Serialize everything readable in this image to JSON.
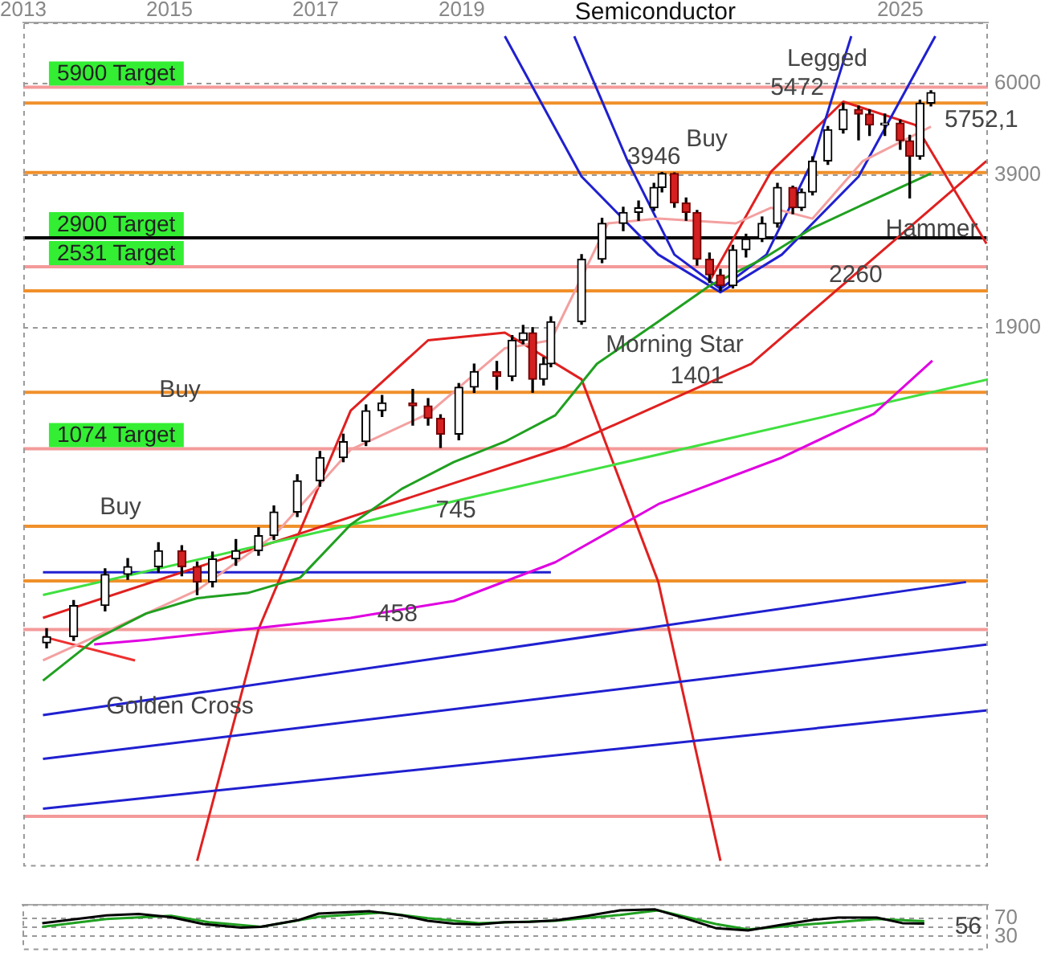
{
  "chart_data": [
    {
      "type": "candlestick",
      "title": "Semiconductor",
      "x": [
        2013.32,
        2013.69,
        2014.12,
        2014.43,
        2014.85,
        2015.17,
        2015.38,
        2015.59,
        2015.91,
        2016.22,
        2016.43,
        2016.75,
        2017.06,
        2017.38,
        2017.69,
        2017.91,
        2018.33,
        2018.54,
        2018.71,
        2018.96,
        2019.17,
        2019.48,
        2019.69,
        2019.84,
        2019.97,
        2020.12,
        2020.22,
        2020.64,
        2020.92,
        2021.21,
        2021.42,
        2021.63,
        2021.74,
        2021.91,
        2022.07,
        2022.22,
        2022.39,
        2022.54,
        2022.71,
        2022.89,
        2023.11,
        2023.32,
        2023.53,
        2023.65,
        2023.8,
        2024.01,
        2024.22,
        2024.43,
        2024.58,
        2024.79,
        2025.0,
        2025.13,
        2025.27,
        2025.42
      ],
      "ohlc": [
        [
          430,
          460,
          420,
          443
        ],
        [
          443,
          525,
          435,
          513
        ],
        [
          513,
          610,
          500,
          594
        ],
        [
          594,
          640,
          580,
          616
        ],
        [
          616,
          690,
          600,
          664
        ],
        [
          664,
          680,
          590,
          616
        ],
        [
          616,
          630,
          540,
          573
        ],
        [
          573,
          660,
          560,
          639
        ],
        [
          639,
          700,
          620,
          664
        ],
        [
          664,
          740,
          650,
          713
        ],
        [
          713,
          820,
          700,
          797
        ],
        [
          797,
          950,
          780,
          923
        ],
        [
          923,
          1060,
          900,
          1030
        ],
        [
          1030,
          1150,
          1010,
          1110
        ],
        [
          1110,
          1320,
          1090,
          1285
        ],
        [
          1285,
          1380,
          1250,
          1333
        ],
        [
          1333,
          1420,
          1200,
          1314
        ],
        [
          1314,
          1360,
          1200,
          1239
        ],
        [
          1239,
          1260,
          1080,
          1150
        ],
        [
          1150,
          1460,
          1120,
          1435
        ],
        [
          1435,
          1600,
          1400,
          1545
        ],
        [
          1545,
          1620,
          1420,
          1509
        ],
        [
          1509,
          1830,
          1480,
          1790
        ],
        [
          1790,
          1920,
          1760,
          1855
        ],
        [
          1855,
          1900,
          1401,
          1489
        ],
        [
          1489,
          1650,
          1450,
          1602
        ],
        [
          1602,
          2000,
          1580,
          1954
        ],
        [
          1954,
          2680,
          1930,
          2622
        ],
        [
          2622,
          3180,
          2580,
          3105
        ],
        [
          3105,
          3350,
          3000,
          3270
        ],
        [
          3270,
          3450,
          3150,
          3342
        ],
        [
          3342,
          3750,
          3300,
          3678
        ],
        [
          3678,
          3946,
          3600,
          3929
        ],
        [
          3929,
          3940,
          3350,
          3418
        ],
        [
          3418,
          3500,
          3150,
          3270
        ],
        [
          3270,
          3300,
          2550,
          2622
        ],
        [
          2622,
          2700,
          2350,
          2436
        ],
        [
          2436,
          2500,
          2260,
          2314
        ],
        [
          2314,
          2800,
          2290,
          2741
        ],
        [
          2741,
          2950,
          2650,
          2886
        ],
        [
          2886,
          3200,
          2850,
          3105
        ],
        [
          3105,
          3750,
          3050,
          3678
        ],
        [
          3678,
          3700,
          3250,
          3342
        ],
        [
          3342,
          3650,
          3300,
          3597
        ],
        [
          3597,
          4250,
          3550,
          4166
        ],
        [
          4166,
          4900,
          4100,
          4828
        ],
        [
          4828,
          5472,
          4750,
          5312
        ],
        [
          5312,
          5400,
          4600,
          5196
        ],
        [
          5196,
          5300,
          4700,
          4934
        ],
        [
          4934,
          5200,
          4700,
          4980
        ],
        [
          4980,
          5050,
          4400,
          4585
        ],
        [
          4585,
          4700,
          3500,
          4259
        ],
        [
          4259,
          5550,
          4200,
          5470
        ],
        [
          5470,
          5800,
          5400,
          5752.1
        ]
      ],
      "series": [
        {
          "type": "line",
          "color": "#20a020",
          "x": [
            2013.27,
            2013.97,
            2014.68,
            2015.38,
            2016.07,
            2016.79,
            2017.48,
            2018.18,
            2018.89,
            2019.59,
            2020.28,
            2020.85,
            2021.69,
            2022.39,
            2023.11,
            2023.8,
            2024.49,
            2025.42
          ],
          "values": [
            360,
            436,
            494,
            531,
            544,
            585,
            751,
            889,
            1008,
            1110,
            1257,
            1602,
            1954,
            2314,
            2622,
            3037,
            3391,
            3929
          ]
        },
        {
          "type": "line",
          "color": "#e000e0",
          "x": [
            2013.97,
            2014.68,
            2016.07,
            2017.48,
            2018.89,
            2020.28,
            2021.69,
            2023.38,
            2024.64,
            2025.44
          ],
          "values": [
            427,
            436,
            459,
            484,
            524,
            629,
            827,
            1030,
            1266,
            1626
          ]
        },
        {
          "type": "line",
          "color": "#f4a0a0",
          "x": [
            2013.27,
            2015.38,
            2016.43,
            2017.48,
            2018.54,
            2019.59,
            2020.22,
            2021,
            2021.69,
            2022.75,
            2023.23,
            2023.8,
            2024.49,
            2025.42
          ],
          "values": [
            396,
            551,
            713,
            1069,
            1266,
            1724,
            1790,
            3105,
            3175,
            3105,
            3342,
            3175,
            4166,
            4898
          ]
        },
        {
          "type": "line",
          "color": "#40e040",
          "x": [
            2013.27,
            2026.2
          ],
          "values": [
            539,
            1489
          ]
        },
        {
          "type": "line",
          "color": "#e02020",
          "x": [
            2013.27,
            2020.43,
            2022.96,
            2026.18
          ],
          "values": [
            484,
            1086,
            1602,
            4166
          ]
        },
        {
          "type": "line",
          "color": "#2020d0",
          "x": [
            2013.27,
            2025.9
          ],
          "values": [
            306,
            573
          ]
        },
        {
          "type": "line",
          "color": "#2020d0",
          "x": [
            2013.27,
            2026.2
          ],
          "values": [
            249,
            427
          ]
        },
        {
          "type": "line",
          "color": "#2020d0",
          "x": [
            2013.27,
            2026.2
          ],
          "values": [
            197,
            313
          ]
        },
        {
          "type": "line",
          "color": "#ee3030",
          "x": [
            2013.27,
            2014.53
          ],
          "values": [
            443,
            396
          ]
        },
        {
          "type": "line",
          "color": "#2020d0",
          "x": [
            2013.27,
            2020.22
          ],
          "values": [
            600,
            600
          ]
        },
        {
          "type": "line",
          "color": "#2020d0",
          "x": [
            2020.54,
            2021.27,
            2021.91,
            2022.54,
            2023.17,
            2023.8,
            2024.33
          ],
          "values": [
            7500,
            4166,
            2680,
            2280,
            2680,
            4166,
            7500
          ]
        },
        {
          "type": "line",
          "color": "#2020d0",
          "x": [
            2019.59,
            2020.64,
            2021.69,
            2022.54,
            2023.38,
            2024.43,
            2025.48
          ],
          "values": [
            7500,
            3871,
            2680,
            2245,
            2680,
            3871,
            7500
          ]
        },
        {
          "type": "line",
          "color": "#e02020",
          "x": [
            2015.38,
            2016.22,
            2017.48,
            2018.54,
            2019.59,
            2020.64,
            2021.69,
            2022.54
          ],
          "values": [
            154,
            459,
            1285,
            1790,
            1855,
            1489,
            573,
            154
          ]
        },
        {
          "type": "line",
          "color": "#e02020",
          "x": [
            2022.39,
            2023.23,
            2024.22,
            2025.21,
            2026.18
          ],
          "values": [
            2365,
            3957,
            5510,
            4934,
            2821
          ]
        }
      ],
      "xlim": [
        2013,
        2026.2
      ],
      "xticks": [
        2013,
        2015,
        2017,
        2019,
        2025
      ],
      "ylim": [
        150,
        8000
      ],
      "yticks": [
        1900,
        3900,
        6000
      ],
      "log": true,
      "grid": "y",
      "marker": "none",
      "ref_lines": [
        {
          "axis": "y",
          "value": 5900,
          "label": "5900 Target",
          "color": "#f49a9a"
        },
        {
          "axis": "y",
          "value": 2900,
          "label": "2900 Target",
          "color": "#000000"
        },
        {
          "axis": "y",
          "value": 2531,
          "label": "2531 Target",
          "color": "#f49a9a"
        },
        {
          "axis": "y",
          "value": 1074,
          "label": "1074 Target",
          "color": "#f49a9a"
        },
        {
          "axis": "y",
          "value": 458,
          "color": "#f49a9a"
        },
        {
          "axis": "y",
          "value": 190,
          "color": "#f49a9a"
        },
        {
          "axis": "y",
          "value": 5472,
          "color": "#f0902a"
        },
        {
          "axis": "y",
          "value": 3946,
          "color": "#f0902a"
        },
        {
          "axis": "y",
          "value": 2260,
          "color": "#f0902a"
        },
        {
          "axis": "y",
          "value": 1401,
          "color": "#f0902a"
        },
        {
          "axis": "y",
          "value": 745,
          "color": "#f0902a"
        },
        {
          "axis": "y",
          "value": 576,
          "color": "#f0902a"
        }
      ],
      "annotations": [
        {
          "text": "5472",
          "x": 2023.59,
          "y": 5472
        },
        {
          "text": "3946",
          "x": 2021.63,
          "y": 3946
        },
        {
          "text": "2260",
          "x": 2024.39,
          "y": 2260
        },
        {
          "text": "1401",
          "x": 2022.22,
          "y": 1401
        },
        {
          "text": "745",
          "x": 2018.92,
          "y": 745
        },
        {
          "text": "458",
          "x": 2018.12,
          "y": 458
        },
        "Buy",
        "Buy",
        "Buy",
        "Golden Cross",
        "Morning Star",
        "Hammer",
        "Legged",
        "5752,1"
      ]
    },
    {
      "type": "line",
      "xlim": [
        2013,
        2026.2
      ],
      "ylim": [
        0,
        100
      ],
      "yticks": [
        30,
        {
          "value": 50,
          "label": null
        },
        70
      ],
      "grid": "y",
      "tick_labels": "y",
      "marker": "none",
      "series": [
        {
          "color": "#000000",
          "x": [
            2013.27,
            2014.15,
            2014.59,
            2015.03,
            2015.47,
            2015.99,
            2016.26,
            2016.78,
            2017.05,
            2017.75,
            2018.19,
            2018.54,
            2018.89,
            2019.24,
            2019.59,
            2019.94,
            2020.29,
            2020.73,
            2021.17,
            2021.65,
            2022.05,
            2022.48,
            2022.92,
            2023.36,
            2023.8,
            2024.15,
            2024.68,
            2025.03,
            2025.33
          ],
          "values": [
            59,
            76,
            79,
            72,
            57,
            49,
            51,
            66,
            80,
            85,
            76,
            64,
            58,
            56,
            61,
            62,
            65,
            75,
            87,
            89,
            70,
            48,
            43,
            55,
            66,
            71,
            71,
            59,
            58
          ]
        },
        {
          "color": "#20a020",
          "x": [
            2013.27,
            2014.15,
            2015.03,
            2015.55,
            2016.26,
            2017.05,
            2017.92,
            2018.54,
            2019.24,
            2020.29,
            2021.17,
            2021.69,
            2022.48,
            2022.92,
            2023.8,
            2024.68,
            2025.33
          ],
          "values": [
            51,
            68,
            75,
            61,
            51,
            73,
            82,
            70,
            59,
            64,
            77,
            87,
            57,
            45,
            57,
            68,
            63
          ]
        }
      ],
      "annotations": [
        "56"
      ]
    }
  ]
}
